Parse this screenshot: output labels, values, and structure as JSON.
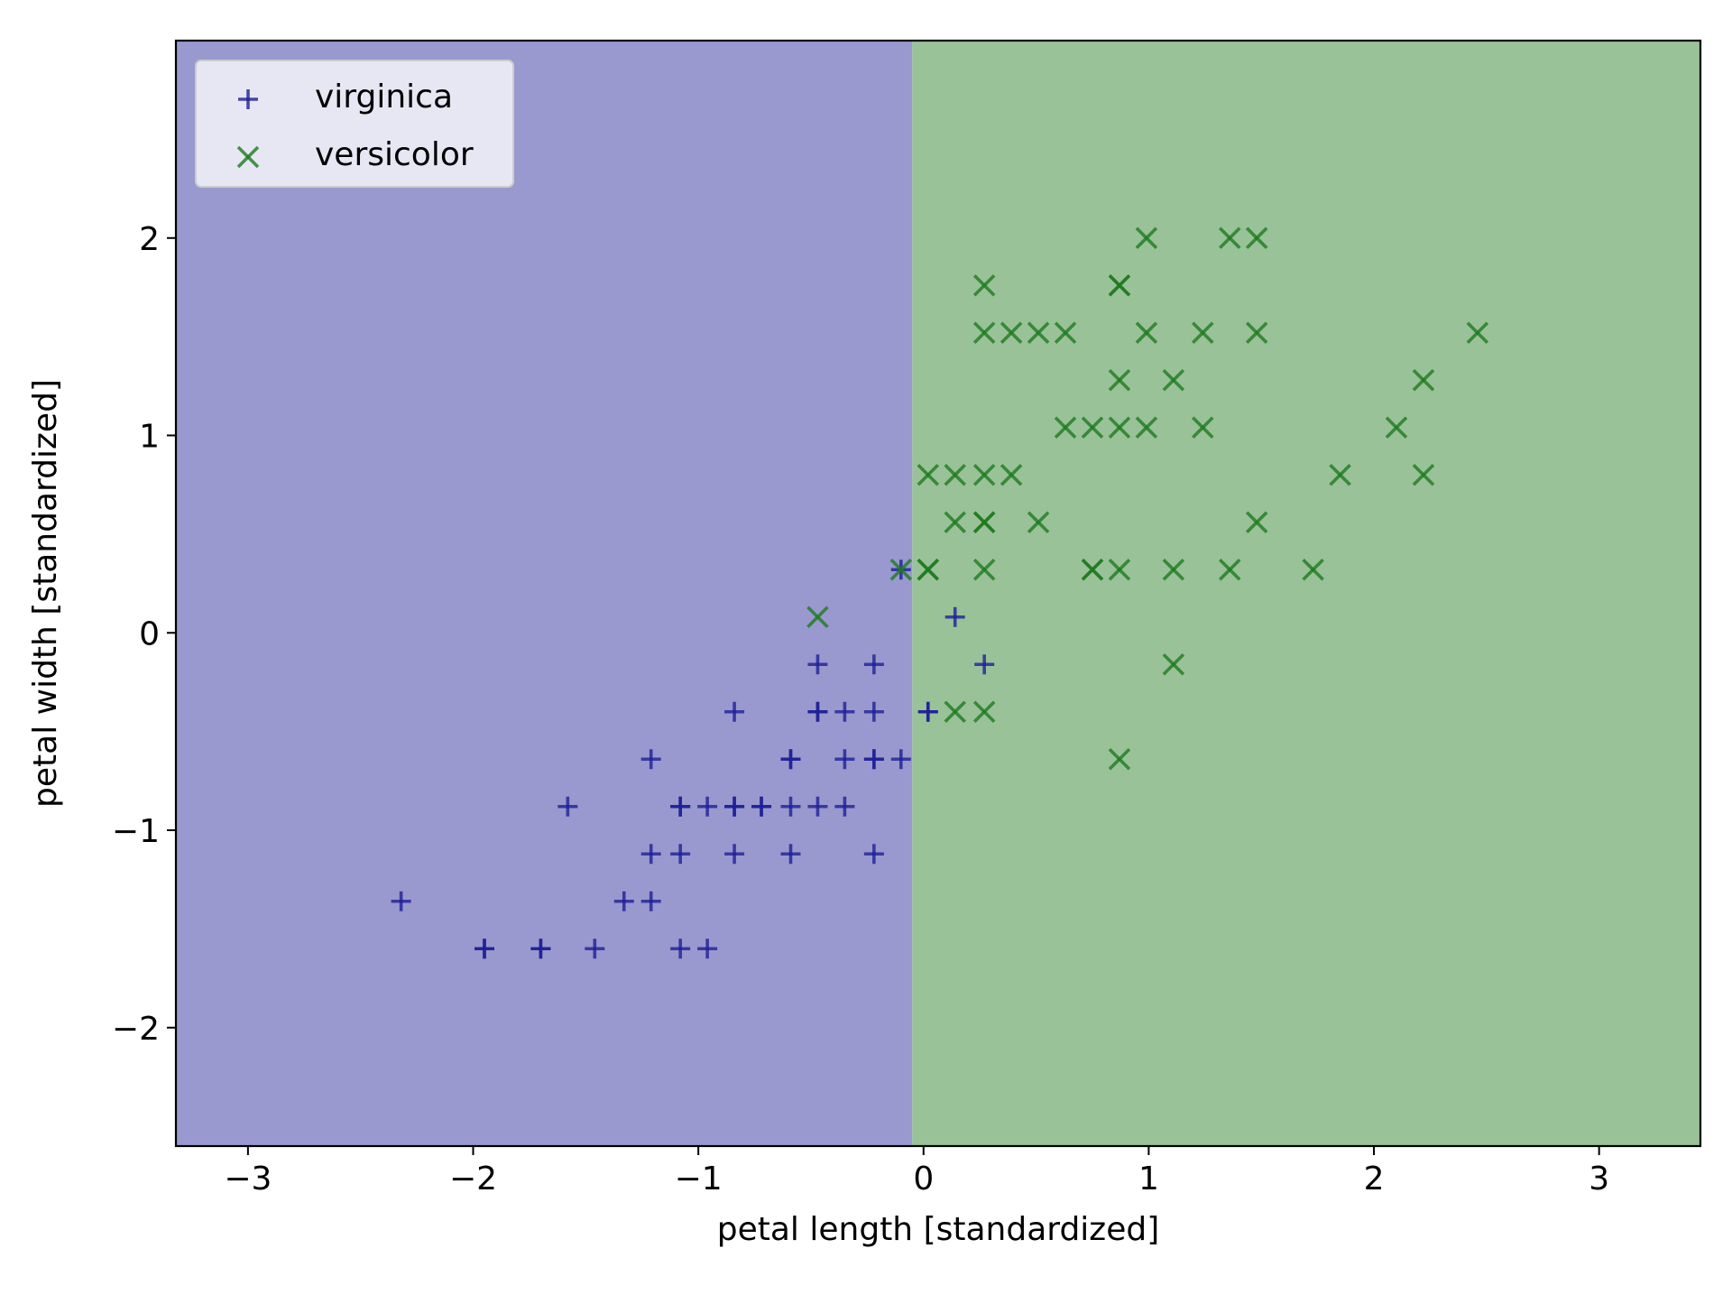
{
  "chart_data": {
    "type": "scatter",
    "title": "",
    "xlabel": "petal length [standardized]",
    "ylabel": "petal width [standardized]",
    "xlim": [
      -3.32,
      3.45
    ],
    "ylim": [
      -2.6,
      3.0
    ],
    "xticks": [
      -3,
      -2,
      -1,
      0,
      1,
      2,
      3
    ],
    "yticks": [
      -2,
      -1,
      0,
      1,
      2
    ],
    "grid": false,
    "legend_position": "upper-left",
    "decision_regions": [
      {
        "class": "virginica",
        "x_from": -3.32,
        "x_to": -0.05,
        "color": "#9999cf"
      },
      {
        "class": "versicolor",
        "x_from": -0.05,
        "x_to": 3.45,
        "color": "#99c299"
      }
    ],
    "series": [
      {
        "name": "virginica",
        "marker": "plus",
        "color": "#1f1f96",
        "points": [
          [
            -2.32,
            -1.36
          ],
          [
            -1.95,
            -1.6
          ],
          [
            -1.95,
            -1.6
          ],
          [
            -1.7,
            -1.6
          ],
          [
            -1.7,
            -1.6
          ],
          [
            -1.46,
            -1.6
          ],
          [
            -1.08,
            -1.6
          ],
          [
            -0.96,
            -1.6
          ],
          [
            -1.33,
            -1.36
          ],
          [
            -1.21,
            -1.36
          ],
          [
            -1.21,
            -1.12
          ],
          [
            -1.08,
            -1.12
          ],
          [
            -0.84,
            -1.12
          ],
          [
            -0.59,
            -1.12
          ],
          [
            -0.22,
            -1.12
          ],
          [
            -1.58,
            -0.88
          ],
          [
            -1.08,
            -0.88
          ],
          [
            -1.08,
            -0.88
          ],
          [
            -0.96,
            -0.88
          ],
          [
            -0.84,
            -0.88
          ],
          [
            -0.84,
            -0.88
          ],
          [
            -0.72,
            -0.88
          ],
          [
            -0.72,
            -0.88
          ],
          [
            -0.59,
            -0.88
          ],
          [
            -0.47,
            -0.88
          ],
          [
            -0.35,
            -0.88
          ],
          [
            -1.21,
            -0.64
          ],
          [
            -0.59,
            -0.64
          ],
          [
            -0.59,
            -0.64
          ],
          [
            -0.35,
            -0.64
          ],
          [
            -0.22,
            -0.64
          ],
          [
            -0.22,
            -0.64
          ],
          [
            -0.1,
            -0.64
          ],
          [
            -0.84,
            -0.4
          ],
          [
            -0.47,
            -0.4
          ],
          [
            -0.47,
            -0.4
          ],
          [
            -0.35,
            -0.4
          ],
          [
            -0.22,
            -0.4
          ],
          [
            0.02,
            -0.4
          ],
          [
            0.02,
            -0.4
          ],
          [
            -0.47,
            -0.16
          ],
          [
            -0.22,
            -0.16
          ],
          [
            0.27,
            -0.16
          ],
          [
            0.14,
            0.08
          ],
          [
            -0.1,
            0.32
          ]
        ]
      },
      {
        "name": "versicolor",
        "marker": "x",
        "color": "#1e7a1e",
        "points": [
          [
            -0.47,
            0.08
          ],
          [
            -0.1,
            0.32
          ],
          [
            0.02,
            0.32
          ],
          [
            0.02,
            0.32
          ],
          [
            0.27,
            0.32
          ],
          [
            0.75,
            0.32
          ],
          [
            0.75,
            0.32
          ],
          [
            0.87,
            0.32
          ],
          [
            1.11,
            0.32
          ],
          [
            1.36,
            0.32
          ],
          [
            1.73,
            0.32
          ],
          [
            0.14,
            0.56
          ],
          [
            0.27,
            0.56
          ],
          [
            0.27,
            0.56
          ],
          [
            0.51,
            0.56
          ],
          [
            1.48,
            0.56
          ],
          [
            0.02,
            0.8
          ],
          [
            0.14,
            0.8
          ],
          [
            0.27,
            0.8
          ],
          [
            0.39,
            0.8
          ],
          [
            1.85,
            0.8
          ],
          [
            2.22,
            0.8
          ],
          [
            0.63,
            1.04
          ],
          [
            0.75,
            1.04
          ],
          [
            0.87,
            1.04
          ],
          [
            0.99,
            1.04
          ],
          [
            1.24,
            1.04
          ],
          [
            2.1,
            1.04
          ],
          [
            0.87,
            1.28
          ],
          [
            1.11,
            1.28
          ],
          [
            2.22,
            1.28
          ],
          [
            0.27,
            1.52
          ],
          [
            0.39,
            1.52
          ],
          [
            0.51,
            1.52
          ],
          [
            0.63,
            1.52
          ],
          [
            0.99,
            1.52
          ],
          [
            1.24,
            1.52
          ],
          [
            1.48,
            1.52
          ],
          [
            2.46,
            1.52
          ],
          [
            0.27,
            1.76
          ],
          [
            0.87,
            1.76
          ],
          [
            0.87,
            1.76
          ],
          [
            0.99,
            2.0
          ],
          [
            1.36,
            2.0
          ],
          [
            1.48,
            2.0
          ],
          [
            0.14,
            -0.4
          ],
          [
            0.27,
            -0.4
          ],
          [
            1.11,
            -0.16
          ],
          [
            0.87,
            -0.64
          ]
        ]
      }
    ]
  }
}
